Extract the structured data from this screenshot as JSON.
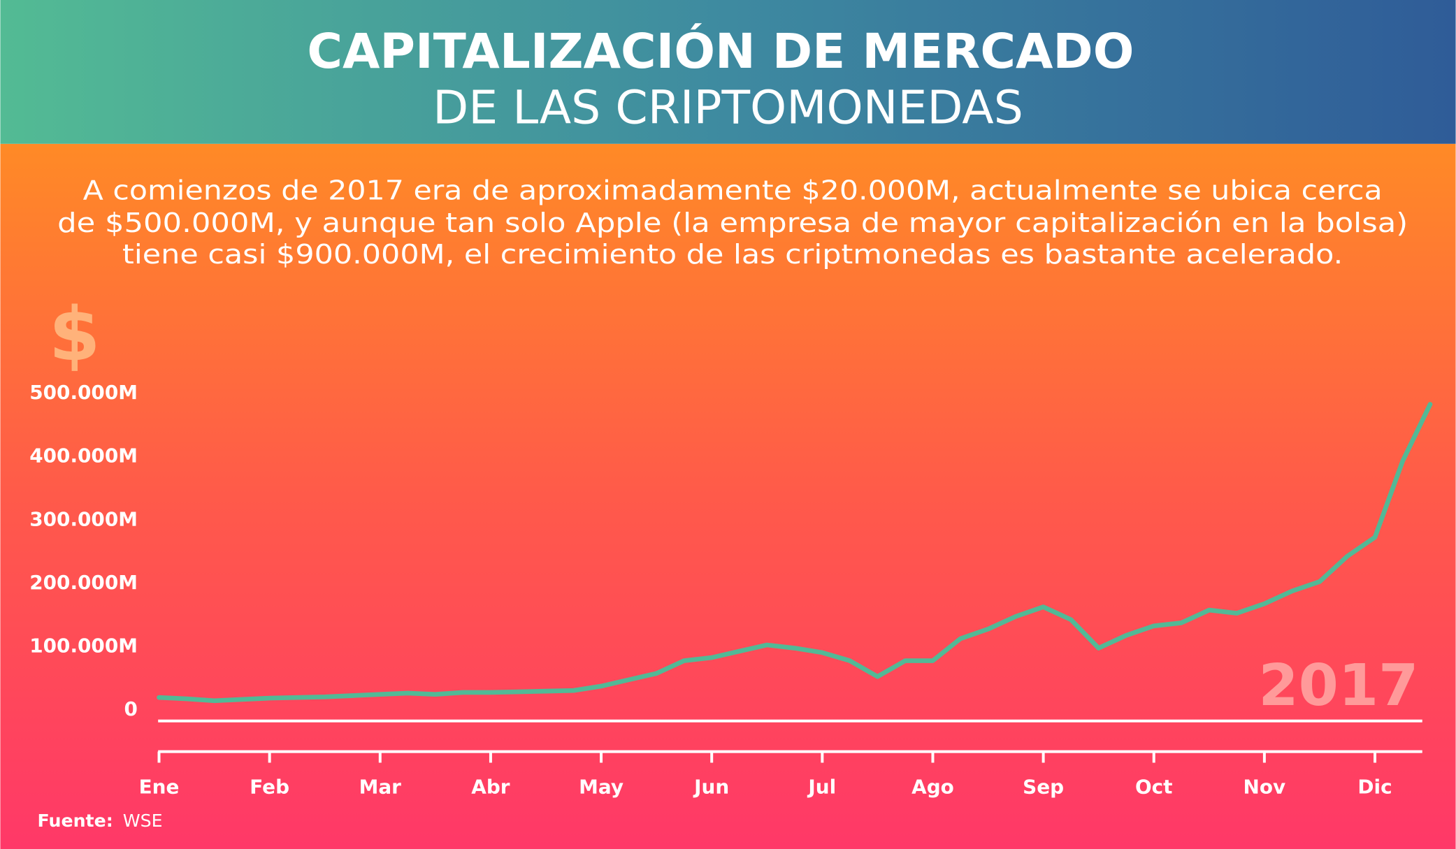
{
  "chart_data": {
    "type": "line",
    "title": "CAPITALIZACIÓN DE MERCADO",
    "subtitle": "DE LAS CRIPTOMONEDAS",
    "description": [
      "A comienzos de 2017 era de aproximadamente $20.000M, actualmente se ubica cerca",
      "de $500.000M, y aunque tan solo Apple (la empresa de mayor capitalización en la bolsa)",
      "tiene casi $900.000M, el crecimiento de las criptmonedas es bastante acelerado."
    ],
    "y_axis_label": "$",
    "annotation": "2017",
    "source_label": "Fuente:",
    "source": "WSE",
    "categories": [
      "Ene",
      null,
      null,
      null,
      "Feb",
      null,
      null,
      null,
      "Mar",
      null,
      null,
      null,
      "Abr",
      null,
      null,
      null,
      "May",
      null,
      null,
      null,
      "Jun",
      null,
      null,
      null,
      "Jul",
      null,
      null,
      null,
      "Ago",
      null,
      null,
      null,
      "Sep",
      null,
      null,
      null,
      "Oct",
      null,
      null,
      null,
      "Nov",
      null,
      null,
      null,
      "Dic",
      null,
      null
    ],
    "series": [
      {
        "name": "Capitalización de mercado",
        "color": "#52b996",
        "values": [
          17000,
          15000,
          12000,
          14000,
          16000,
          17000,
          18000,
          20000,
          22000,
          24000,
          22000,
          25000,
          25000,
          26000,
          27000,
          28000,
          35000,
          45000,
          55000,
          75000,
          80000,
          90000,
          100000,
          95000,
          88000,
          75000,
          50000,
          75000,
          75000,
          110000,
          125000,
          145000,
          160000,
          140000,
          95000,
          115000,
          130000,
          135000,
          155000,
          150000,
          165000,
          185000,
          200000,
          240000,
          270000,
          390000,
          480000
        ]
      }
    ],
    "ylim": [
      -20000,
      500000
    ],
    "yticks": [
      0,
      {
        "value": 100000,
        "label": "100.000M"
      },
      {
        "value": 200000,
        "label": "200.000M"
      },
      {
        "value": 300000,
        "label": "300.000M"
      },
      {
        "value": 400000,
        "label": "400.000M"
      },
      {
        "value": 500000,
        "label": "500.000M"
      }
    ],
    "grid": false
  }
}
